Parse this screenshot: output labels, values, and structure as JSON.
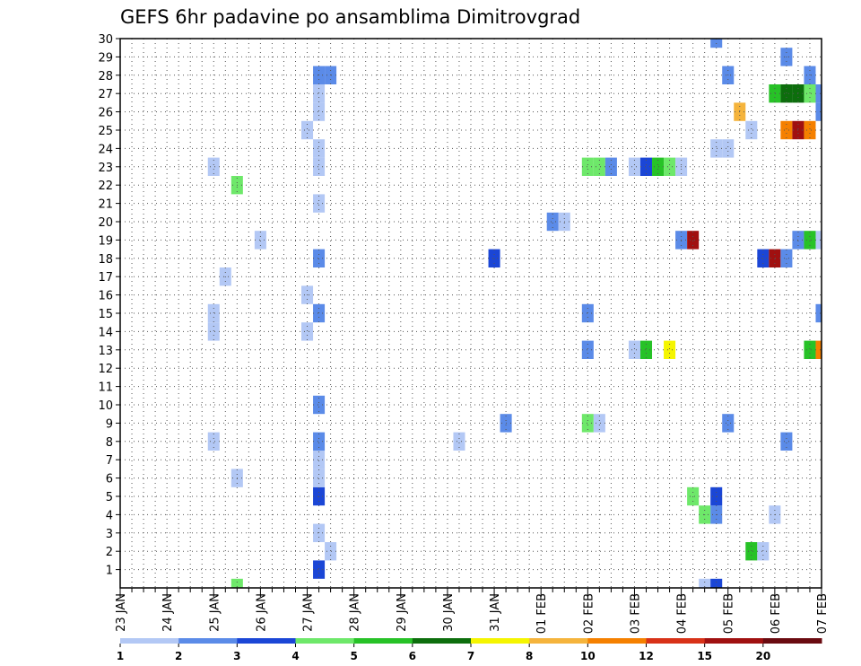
{
  "chart_data": {
    "type": "heatmap",
    "title": "GEFS 6hr padavine po ansamblima Dimitrovgrad",
    "y_categories": [
      "1",
      "2",
      "3",
      "4",
      "5",
      "6",
      "7",
      "8",
      "9",
      "10",
      "11",
      "12",
      "13",
      "14",
      "15",
      "16",
      "17",
      "18",
      "19",
      "20",
      "21",
      "22",
      "23",
      "24",
      "25",
      "26",
      "27",
      "28",
      "29",
      "30"
    ],
    "x_ticks": [
      "23 JAN",
      "24 JAN",
      "25 JAN",
      "26 JAN",
      "27 JAN",
      "28 JAN",
      "29 JAN",
      "30 JAN",
      "31 JAN",
      "01 FEB",
      "02 FEB",
      "03 FEB",
      "04 FEB",
      "05 FEB",
      "06 FEB",
      "07 FEB"
    ],
    "x_range_days": [
      0,
      15
    ],
    "grid": true,
    "legend_placement": "bottom",
    "legend": {
      "thresholds": [
        "1",
        "2",
        "3",
        "4",
        "5",
        "6",
        "7",
        "8",
        "10",
        "12",
        "15",
        "20"
      ],
      "colors": [
        "#b3c8f5",
        "#5b8be8",
        "#1b46d6",
        "#6ee86a",
        "#27c227",
        "#0d6e0d",
        "#f5f500",
        "#f5b43c",
        "#f58000",
        "#d83218",
        "#a01010",
        "#6a0a10"
      ]
    },
    "cells_day_member_class": [
      [
        4.25,
        1,
        3
      ],
      [
        4.25,
        3,
        1
      ],
      [
        4.25,
        5,
        3
      ],
      [
        4.25,
        6,
        1
      ],
      [
        4.25,
        7,
        1
      ],
      [
        4.25,
        8,
        2
      ],
      [
        4.25,
        10,
        2
      ],
      [
        4.25,
        15,
        2
      ],
      [
        4.25,
        18,
        2
      ],
      [
        4.25,
        21,
        1
      ],
      [
        4.25,
        23,
        1
      ],
      [
        4.25,
        24,
        1
      ],
      [
        4.25,
        26,
        1
      ],
      [
        4.25,
        27,
        1
      ],
      [
        4.25,
        28,
        2
      ],
      [
        4.5,
        2,
        1
      ],
      [
        4.5,
        28,
        2
      ],
      [
        4.0,
        14,
        1
      ],
      [
        4.0,
        16,
        1
      ],
      [
        4.0,
        25,
        1
      ],
      [
        2.0,
        8,
        1
      ],
      [
        2.0,
        14,
        1
      ],
      [
        2.0,
        15,
        1
      ],
      [
        2.0,
        23,
        1
      ],
      [
        2.5,
        0,
        4
      ],
      [
        2.5,
        6,
        1
      ],
      [
        2.5,
        22,
        4
      ],
      [
        2.25,
        17,
        1
      ],
      [
        3.0,
        19,
        1
      ],
      [
        7.25,
        8,
        1
      ],
      [
        8.0,
        18,
        3
      ],
      [
        8.25,
        9,
        2
      ],
      [
        9.25,
        20,
        2
      ],
      [
        9.5,
        20,
        1
      ],
      [
        10.0,
        9,
        4
      ],
      [
        10.25,
        9,
        1
      ],
      [
        10.0,
        13,
        2
      ],
      [
        10.0,
        15,
        2
      ],
      [
        10.0,
        23,
        4
      ],
      [
        10.25,
        23,
        4
      ],
      [
        10.5,
        23,
        2
      ],
      [
        11.0,
        13,
        1
      ],
      [
        11.25,
        13,
        5
      ],
      [
        11.0,
        23,
        1
      ],
      [
        11.25,
        23,
        3
      ],
      [
        11.5,
        23,
        5
      ],
      [
        11.75,
        23,
        4
      ],
      [
        12.0,
        23,
        1
      ],
      [
        11.75,
        13,
        7
      ],
      [
        12.0,
        19,
        2
      ],
      [
        12.25,
        19,
        11
      ],
      [
        12.25,
        5,
        4
      ],
      [
        12.5,
        0,
        1
      ],
      [
        12.5,
        4,
        4
      ],
      [
        12.75,
        0,
        3
      ],
      [
        12.75,
        4,
        2
      ],
      [
        12.75,
        5,
        3
      ],
      [
        12.75,
        24,
        1
      ],
      [
        13.0,
        24,
        1
      ],
      [
        12.75,
        30,
        2
      ],
      [
        13.0,
        9,
        2
      ],
      [
        13.0,
        28,
        2
      ],
      [
        13.25,
        26,
        8
      ],
      [
        13.5,
        2,
        5
      ],
      [
        13.75,
        2,
        1
      ],
      [
        13.5,
        25,
        1
      ],
      [
        13.75,
        18,
        3
      ],
      [
        14.0,
        18,
        11
      ],
      [
        14.25,
        18,
        2
      ],
      [
        14.0,
        4,
        1
      ],
      [
        14.0,
        27,
        5
      ],
      [
        14.25,
        27,
        6
      ],
      [
        14.5,
        27,
        6
      ],
      [
        14.75,
        27,
        4
      ],
      [
        15.0,
        26,
        2
      ],
      [
        15.0,
        27,
        2
      ],
      [
        14.25,
        25,
        9
      ],
      [
        14.5,
        25,
        11
      ],
      [
        14.75,
        25,
        9
      ],
      [
        14.25,
        29,
        2
      ],
      [
        14.25,
        8,
        2
      ],
      [
        14.5,
        19,
        2
      ],
      [
        14.75,
        19,
        5
      ],
      [
        15.0,
        19,
        1
      ],
      [
        14.75,
        13,
        5
      ],
      [
        15.0,
        13,
        9
      ],
      [
        14.75,
        28,
        2
      ],
      [
        15.0,
        15,
        2
      ]
    ]
  }
}
